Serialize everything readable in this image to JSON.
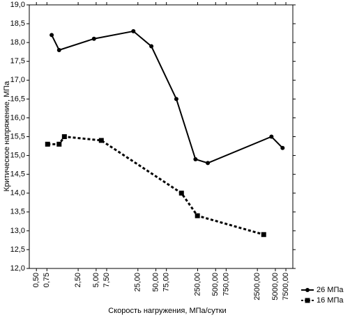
{
  "chart_data": {
    "type": "line",
    "xlabel": "Скорость нагружения, МПа/сутки",
    "ylabel": "Критическое напряжение, МПа",
    "xscale": "log",
    "xlim": [
      0.38,
      9800
    ],
    "xticks": [
      {
        "value": 0.5,
        "label": "0,50"
      },
      {
        "value": 0.75,
        "label": "0,75"
      },
      {
        "value": 2.5,
        "label": "2,50"
      },
      {
        "value": 5,
        "label": "5,00"
      },
      {
        "value": 7.5,
        "label": "7,50"
      },
      {
        "value": 25,
        "label": "25,00"
      },
      {
        "value": 50,
        "label": "50,00"
      },
      {
        "value": 75,
        "label": "75,00"
      },
      {
        "value": 250,
        "label": "250,00"
      },
      {
        "value": 500,
        "label": "500,00"
      },
      {
        "value": 750,
        "label": "750,00"
      },
      {
        "value": 2500,
        "label": "2500,00"
      },
      {
        "value": 5000,
        "label": "5000,00"
      },
      {
        "value": 7500,
        "label": "7500,00"
      }
    ],
    "ylim": [
      12,
      19
    ],
    "yticks": [
      {
        "value": 12,
        "label": "12,0"
      },
      {
        "value": 12.5,
        "label": "12,5"
      },
      {
        "value": 13,
        "label": "13,0"
      },
      {
        "value": 13.5,
        "label": "13,5"
      },
      {
        "value": 14,
        "label": "14,0"
      },
      {
        "value": 14.5,
        "label": "14,5"
      },
      {
        "value": 15,
        "label": "15,0"
      },
      {
        "value": 15.5,
        "label": "15,5"
      },
      {
        "value": 16,
        "label": "16,0"
      },
      {
        "value": 16.5,
        "label": "16,5"
      },
      {
        "value": 17,
        "label": "17,0"
      },
      {
        "value": 17.5,
        "label": "17,5"
      },
      {
        "value": 18,
        "label": "18,0"
      },
      {
        "value": 18.5,
        "label": "18,5"
      },
      {
        "value": 19,
        "label": "19,0"
      }
    ],
    "legend": "lower right",
    "series": [
      {
        "name": "26 МПа",
        "color": "#000000",
        "marker": "circle",
        "linestyle": "solid",
        "x": [
          0.9,
          1.2,
          4.6,
          21,
          42,
          110,
          230,
          370,
          4300,
          6600
        ],
        "values": [
          18.2,
          17.8,
          18.1,
          18.3,
          17.9,
          16.5,
          14.9,
          14.8,
          15.5,
          15.2
        ]
      },
      {
        "name": "16 МПа",
        "color": "#000000",
        "marker": "square",
        "linestyle": "dotted",
        "x": [
          0.77,
          1.2,
          1.47,
          6.1,
          134,
          248,
          3190
        ],
        "values": [
          15.3,
          15.3,
          15.5,
          15.4,
          14.0,
          13.4,
          12.9
        ]
      }
    ]
  }
}
